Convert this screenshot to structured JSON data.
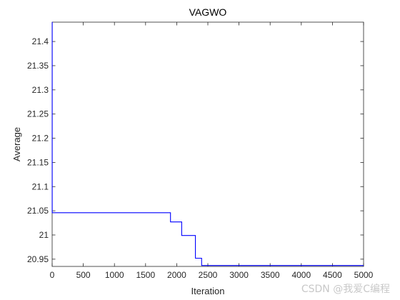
{
  "chart_data": {
    "type": "line",
    "title": "VAGWO",
    "xlabel": "Iteration",
    "ylabel": "Average",
    "xlim": [
      0,
      5000
    ],
    "ylim": [
      20.935,
      21.44
    ],
    "xticks": [
      0,
      500,
      1000,
      1500,
      2000,
      2500,
      3000,
      3500,
      4000,
      4500,
      5000
    ],
    "yticks": [
      20.95,
      21,
      21.05,
      21.1,
      21.15,
      21.2,
      21.25,
      21.3,
      21.35,
      21.4
    ],
    "ytick_labels": [
      "20.95",
      "21",
      "21.05",
      "21.1",
      "21.15",
      "21.2",
      "21.25",
      "21.3",
      "21.35",
      "21.4"
    ],
    "grid": false,
    "legend": "none",
    "series": [
      {
        "color": "#0000ff",
        "x": [
          0,
          1,
          1,
          1900,
          1900,
          2080,
          2080,
          2300,
          2300,
          2400,
          2400,
          5000
        ],
        "y": [
          21.44,
          21.44,
          21.046,
          21.046,
          21.027,
          21.027,
          20.999,
          20.999,
          20.952,
          20.952,
          20.937,
          20.937
        ]
      }
    ]
  },
  "watermark": "CSDN @我爱C编程"
}
